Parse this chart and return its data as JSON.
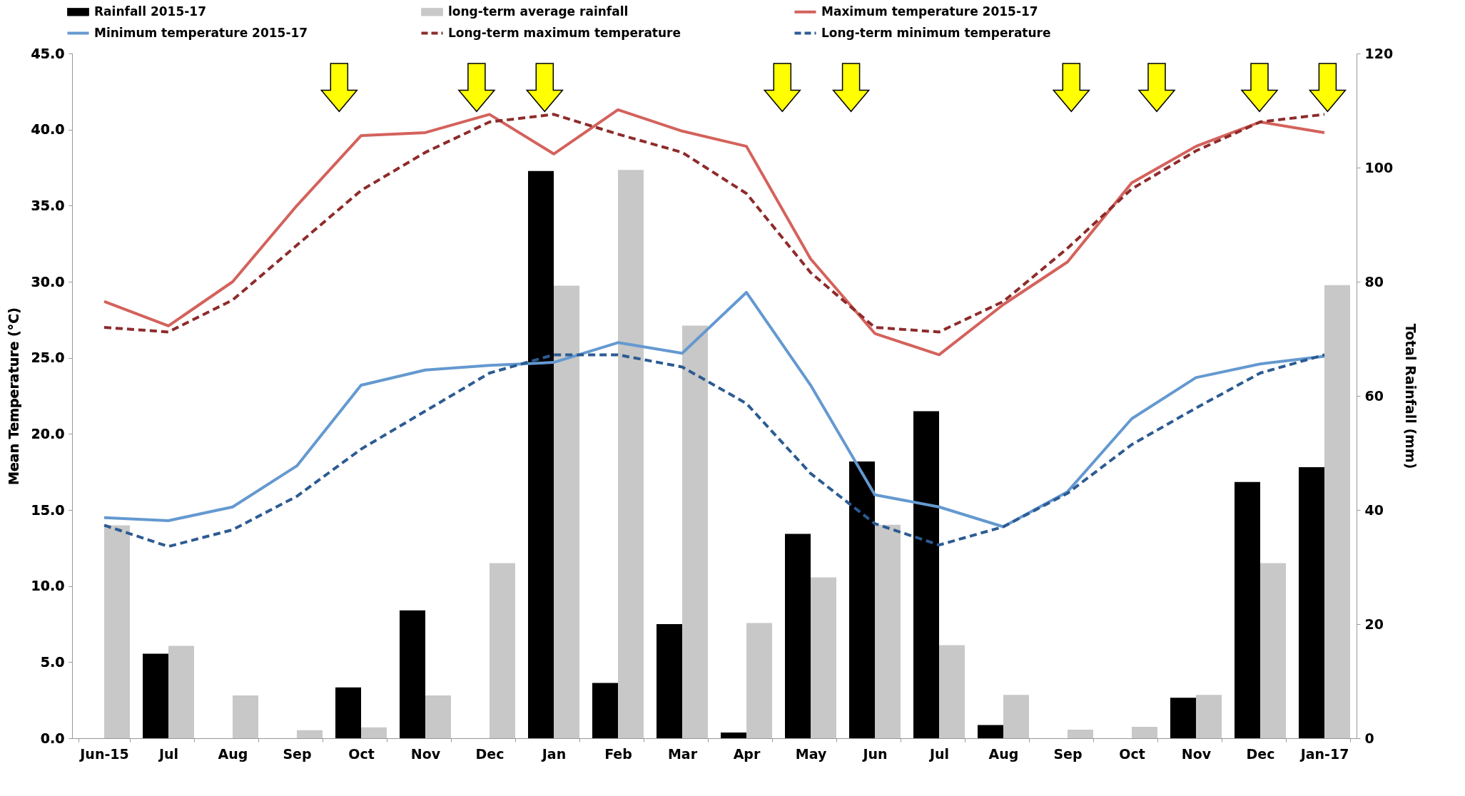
{
  "chart_data": {
    "type": "bar",
    "xlabel": null,
    "ylabel": "Mean Temperature (°C)",
    "y2label": "Total Rainfall (mm)",
    "legend": "top",
    "categories": [
      "Jun-15",
      "Jul",
      "Aug",
      "Sep",
      "Oct",
      "Nov",
      "Dec",
      "Jan",
      "Feb",
      "Mar",
      "Apr",
      "May",
      "Jun",
      "Jul",
      "Aug",
      "Sep",
      "Oct",
      "Nov",
      "Dec",
      "Jan-17"
    ],
    "ylim": [
      0,
      45
    ],
    "yticks": [
      {
        "value": 0,
        "label": "0.0"
      },
      {
        "value": 5,
        "label": "5.0"
      },
      {
        "value": 10,
        "label": "10.0"
      },
      {
        "value": 15,
        "label": "15.0"
      },
      {
        "value": 20,
        "label": "20.0"
      },
      {
        "value": 25,
        "label": "25.0"
      },
      {
        "value": 30,
        "label": "30.0"
      },
      {
        "value": 35,
        "label": "35.0"
      },
      {
        "value": 40,
        "label": "40.0"
      },
      {
        "value": 45,
        "label": "45.0"
      }
    ],
    "y2lim": [
      0,
      120
    ],
    "y2ticks": [
      0,
      20,
      40,
      60,
      80,
      100,
      120
    ],
    "series": [
      {
        "name": "Rainfall 2015-17",
        "axis": "y2",
        "color": "#000000",
        "values": [
          0,
          14.8,
          0,
          0,
          8.9,
          22.4,
          0,
          99.4,
          9.7,
          20.0,
          1.0,
          35.8,
          48.5,
          57.3,
          2.3,
          0,
          0,
          7.1,
          44.9,
          47.5
        ]
      },
      {
        "name": "long-term average rainfall",
        "axis": "y2",
        "color": "#c8c8c8",
        "values": [
          37.3,
          16.2,
          7.5,
          1.4,
          1.9,
          7.5,
          30.7,
          79.3,
          99.6,
          72.3,
          20.2,
          28.2,
          37.4,
          16.3,
          7.6,
          1.5,
          2.0,
          7.6,
          30.7,
          79.4
        ]
      },
      {
        "name": "Maximum temperature 2015-17",
        "type": "line",
        "axis": "y",
        "line_style": "solid",
        "color": "#d4625c",
        "values": [
          28.7,
          27.1,
          30.0,
          35.0,
          39.6,
          39.8,
          41.0,
          38.4,
          41.3,
          39.9,
          38.9,
          31.5,
          26.6,
          25.2,
          28.5,
          31.3,
          36.5,
          38.9,
          40.5,
          39.8
        ]
      },
      {
        "name": "Minimum temperature 2015-17",
        "type": "line",
        "axis": "y",
        "line_style": "solid",
        "color": "#6499d0",
        "values": [
          14.5,
          14.3,
          15.2,
          17.9,
          23.2,
          24.2,
          24.5,
          24.7,
          26.0,
          25.3,
          29.3,
          23.2,
          16.0,
          15.2,
          13.9,
          16.2,
          21.0,
          23.7,
          24.6,
          25.1
        ]
      },
      {
        "name": "Long-term maximum temperature",
        "type": "line",
        "axis": "y",
        "line_style": "dashed",
        "color": "#8e2b2b",
        "values": [
          27.0,
          26.7,
          28.8,
          32.4,
          36.0,
          38.5,
          40.5,
          41.0,
          39.7,
          38.5,
          35.8,
          30.6,
          27.0,
          26.7,
          28.7,
          32.2,
          36.1,
          38.6,
          40.5,
          41.0
        ]
      },
      {
        "name": "Long-term minimum temperature",
        "type": "line",
        "axis": "y",
        "line_style": "dashed",
        "color": "#2c5b92",
        "values": [
          14.0,
          12.6,
          13.7,
          15.9,
          19.0,
          21.5,
          24.0,
          25.2,
          25.2,
          24.4,
          22.0,
          17.4,
          14.1,
          12.7,
          13.9,
          16.1,
          19.3,
          21.7,
          24.0,
          25.2
        ]
      }
    ]
  }
}
